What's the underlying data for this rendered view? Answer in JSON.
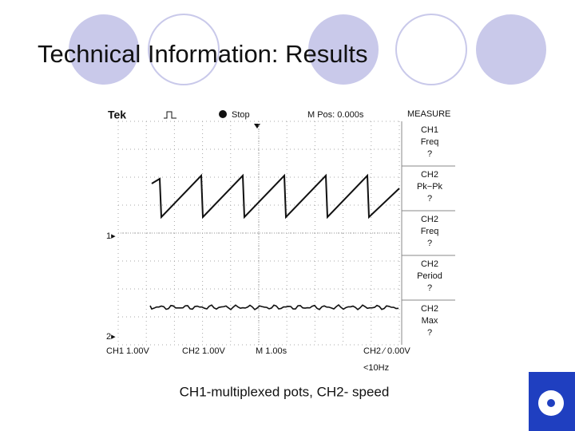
{
  "slide": {
    "title": "Technical Information: Results",
    "caption": "CH1-multiplexed pots, CH2- speed"
  },
  "scope": {
    "brand": "Tek",
    "state": "Stop",
    "position": "M Pos: 0.000s",
    "menu": "MEASURE",
    "measurements": [
      {
        "channel": "CH1",
        "label": "Freq",
        "value": "?"
      },
      {
        "channel": "CH2",
        "label": "Pk−Pk",
        "value": "?"
      },
      {
        "channel": "CH2",
        "label": "Freq",
        "value": "?"
      },
      {
        "channel": "CH2",
        "label": "Period",
        "value": "?"
      },
      {
        "channel": "CH2",
        "label": "Max",
        "value": "?"
      }
    ],
    "markers": [
      "1▸",
      "2▸"
    ],
    "status": [
      "CH1  1.00V",
      "CH2  1.00V",
      "M 1.00s",
      "CH2 ∕ 0.00V",
      "<10Hz"
    ]
  }
}
